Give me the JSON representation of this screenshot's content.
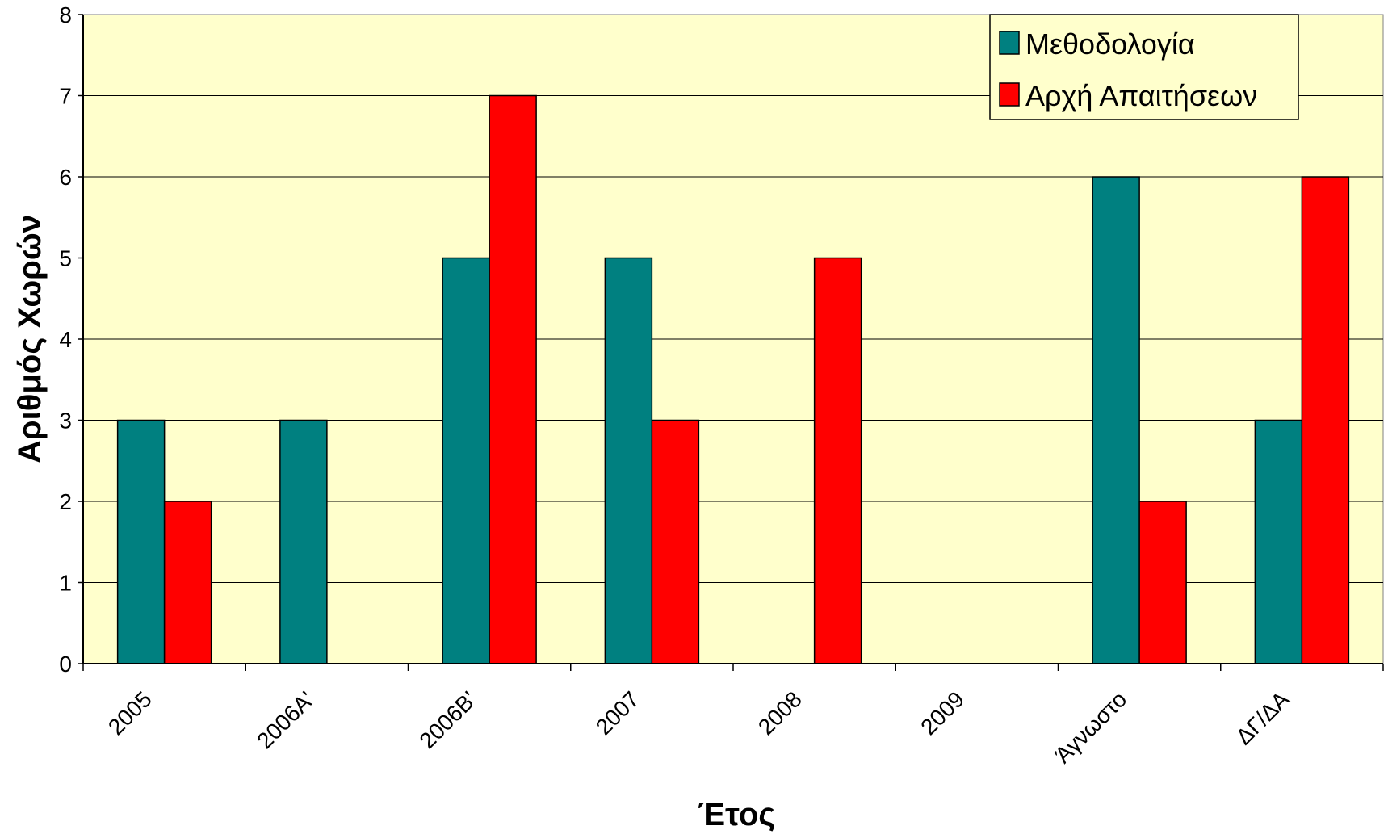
{
  "chart_data": {
    "type": "bar",
    "xlabel": "Έτος",
    "ylabel": "Αριθμός Χωρών",
    "ylim": [
      0,
      8
    ],
    "yticks": [
      0,
      1,
      2,
      3,
      4,
      5,
      6,
      7,
      8
    ],
    "grid": true,
    "legend_position": "top-right",
    "plot_background": "#ffffcc",
    "categories": [
      "2005",
      "2006Α'",
      "2006Β'",
      "2007",
      "2008",
      "2009",
      "Άγνωστο",
      "ΔΓ/ΔΑ"
    ],
    "series": [
      {
        "name": "Μεθοδολογία",
        "color": "#008080",
        "values": [
          3,
          3,
          5,
          5,
          0,
          0,
          6,
          3
        ]
      },
      {
        "name": "Αρχή Απαιτήσεων",
        "color": "#ff0000",
        "values": [
          2,
          0,
          7,
          3,
          5,
          0,
          2,
          6
        ]
      }
    ]
  }
}
